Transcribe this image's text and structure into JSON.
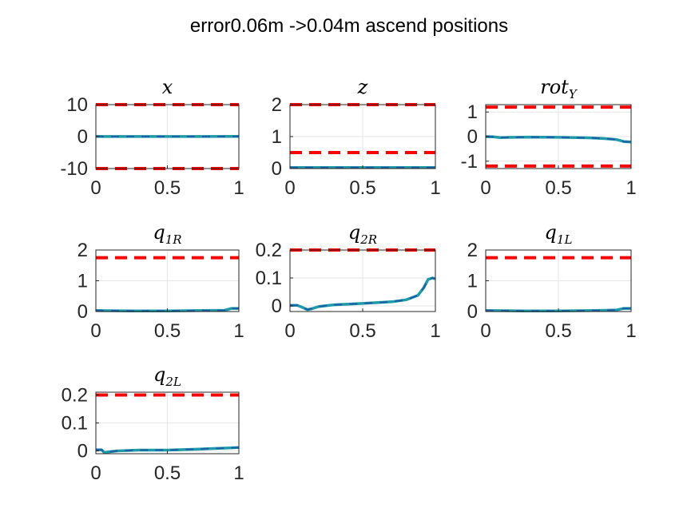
{
  "figure": {
    "title": "error0.06m ->0.04m ascend positions"
  },
  "colors": {
    "limit": "#ff0000",
    "trace_a": "#1f9aa8",
    "trace_b": "#1a5fa8",
    "axes": "#262626",
    "grid": "#e6e6e6"
  },
  "chart_data": [
    {
      "type": "line",
      "title": "x",
      "title_sub": "",
      "xlim": [
        0,
        1
      ],
      "ylim": [
        -10,
        10
      ],
      "xticks": [
        0,
        0.5,
        1
      ],
      "xtick_labels": [
        "0",
        "0.5",
        "1"
      ],
      "yticks": [
        -10,
        0,
        10
      ],
      "ytick_labels": [
        "-10",
        "0",
        "10"
      ],
      "grid": true,
      "limits": [
        10,
        -10
      ],
      "series": [
        {
          "x": [
            0,
            0.25,
            0.5,
            0.75,
            1
          ],
          "y": [
            0.05,
            0.03,
            0.02,
            0.03,
            0.05
          ]
        }
      ]
    },
    {
      "type": "line",
      "title": "z",
      "title_sub": "",
      "xlim": [
        0,
        1
      ],
      "ylim": [
        0,
        2
      ],
      "xticks": [
        0,
        0.5,
        1
      ],
      "xtick_labels": [
        "0",
        "0.5",
        "1"
      ],
      "yticks": [
        0,
        1,
        2
      ],
      "ytick_labels": [
        "0",
        "1",
        "2"
      ],
      "grid": true,
      "limits": [
        2,
        0.5
      ],
      "series": [
        {
          "x": [
            0,
            0.25,
            0.5,
            0.75,
            1
          ],
          "y": [
            0.03,
            0.03,
            0.03,
            0.03,
            0.03
          ]
        }
      ]
    },
    {
      "type": "line",
      "title": "rot",
      "title_sub": "Y",
      "xlim": [
        0,
        1
      ],
      "ylim": [
        -1.3,
        1.3
      ],
      "xticks": [
        0,
        0.5,
        1
      ],
      "xtick_labels": [
        "0",
        "0.5",
        "1"
      ],
      "yticks": [
        -1,
        0,
        1
      ],
      "ytick_labels": [
        "-1",
        "0",
        "1"
      ],
      "grid": true,
      "limits": [
        1.2,
        -1.2
      ],
      "series": [
        {
          "x": [
            0,
            0.05,
            0.1,
            0.3,
            0.5,
            0.7,
            0.8,
            0.9,
            0.95,
            1
          ],
          "y": [
            0,
            -0.01,
            -0.04,
            -0.02,
            -0.03,
            -0.05,
            -0.07,
            -0.12,
            -0.2,
            -0.22
          ]
        }
      ]
    },
    {
      "type": "line",
      "title": "q",
      "title_sub": "1R",
      "xlim": [
        0,
        1
      ],
      "ylim": [
        0,
        2
      ],
      "xticks": [
        0,
        0.5,
        1
      ],
      "xtick_labels": [
        "0",
        "0.5",
        "1"
      ],
      "yticks": [
        0,
        1,
        2
      ],
      "ytick_labels": [
        "0",
        "1",
        "2"
      ],
      "grid": true,
      "limits": [
        1.75
      ],
      "series": [
        {
          "x": [
            0,
            0.25,
            0.5,
            0.75,
            0.9,
            0.95,
            1
          ],
          "y": [
            0.03,
            0.02,
            0.02,
            0.03,
            0.04,
            0.1,
            0.1
          ]
        }
      ]
    },
    {
      "type": "line",
      "title": "q",
      "title_sub": "2R",
      "xlim": [
        0,
        1
      ],
      "ylim": [
        -0.02,
        0.2
      ],
      "xticks": [
        0,
        0.5,
        1
      ],
      "xtick_labels": [
        "0",
        "0.5",
        "1"
      ],
      "yticks": [
        0,
        0.1,
        0.2
      ],
      "ytick_labels": [
        "0",
        "0.1",
        "0.2"
      ],
      "grid": true,
      "limits": [
        0.2
      ],
      "series": [
        {
          "x": [
            0,
            0.05,
            0.08,
            0.12,
            0.15,
            0.2,
            0.3,
            0.5,
            0.7,
            0.8,
            0.88,
            0.92,
            0.95,
            0.98,
            1
          ],
          "y": [
            0.002,
            0.002,
            -0.004,
            -0.013,
            -0.01,
            -0.002,
            0.004,
            0.009,
            0.015,
            0.022,
            0.038,
            0.065,
            0.095,
            0.1,
            0.097
          ]
        }
      ]
    },
    {
      "type": "line",
      "title": "q",
      "title_sub": "1L",
      "xlim": [
        0,
        1
      ],
      "ylim": [
        0,
        2
      ],
      "xticks": [
        0,
        0.5,
        1
      ],
      "xtick_labels": [
        "0",
        "0.5",
        "1"
      ],
      "yticks": [
        0,
        1,
        2
      ],
      "ytick_labels": [
        "0",
        "1",
        "2"
      ],
      "grid": true,
      "limits": [
        1.75
      ],
      "series": [
        {
          "x": [
            0,
            0.25,
            0.5,
            0.75,
            0.9,
            0.95,
            1
          ],
          "y": [
            0.03,
            0.02,
            0.02,
            0.03,
            0.05,
            0.1,
            0.1
          ]
        }
      ]
    },
    {
      "type": "line",
      "title": "q",
      "title_sub": "2L",
      "xlim": [
        0,
        1
      ],
      "ylim": [
        -0.01,
        0.21
      ],
      "xticks": [
        0,
        0.5,
        1
      ],
      "xtick_labels": [
        "0",
        "0.5",
        "1"
      ],
      "yticks": [
        0,
        0.1,
        0.2
      ],
      "ytick_labels": [
        "0",
        "0.1",
        "0.2"
      ],
      "grid": true,
      "limits": [
        0.2
      ],
      "series": [
        {
          "x": [
            0,
            0.04,
            0.06,
            0.08,
            0.15,
            0.3,
            0.5,
            0.7,
            0.9,
            1
          ],
          "y": [
            0.004,
            0.004,
            -0.006,
            -0.004,
            0.0,
            0.003,
            0.003,
            0.006,
            0.01,
            0.012
          ]
        }
      ]
    }
  ]
}
